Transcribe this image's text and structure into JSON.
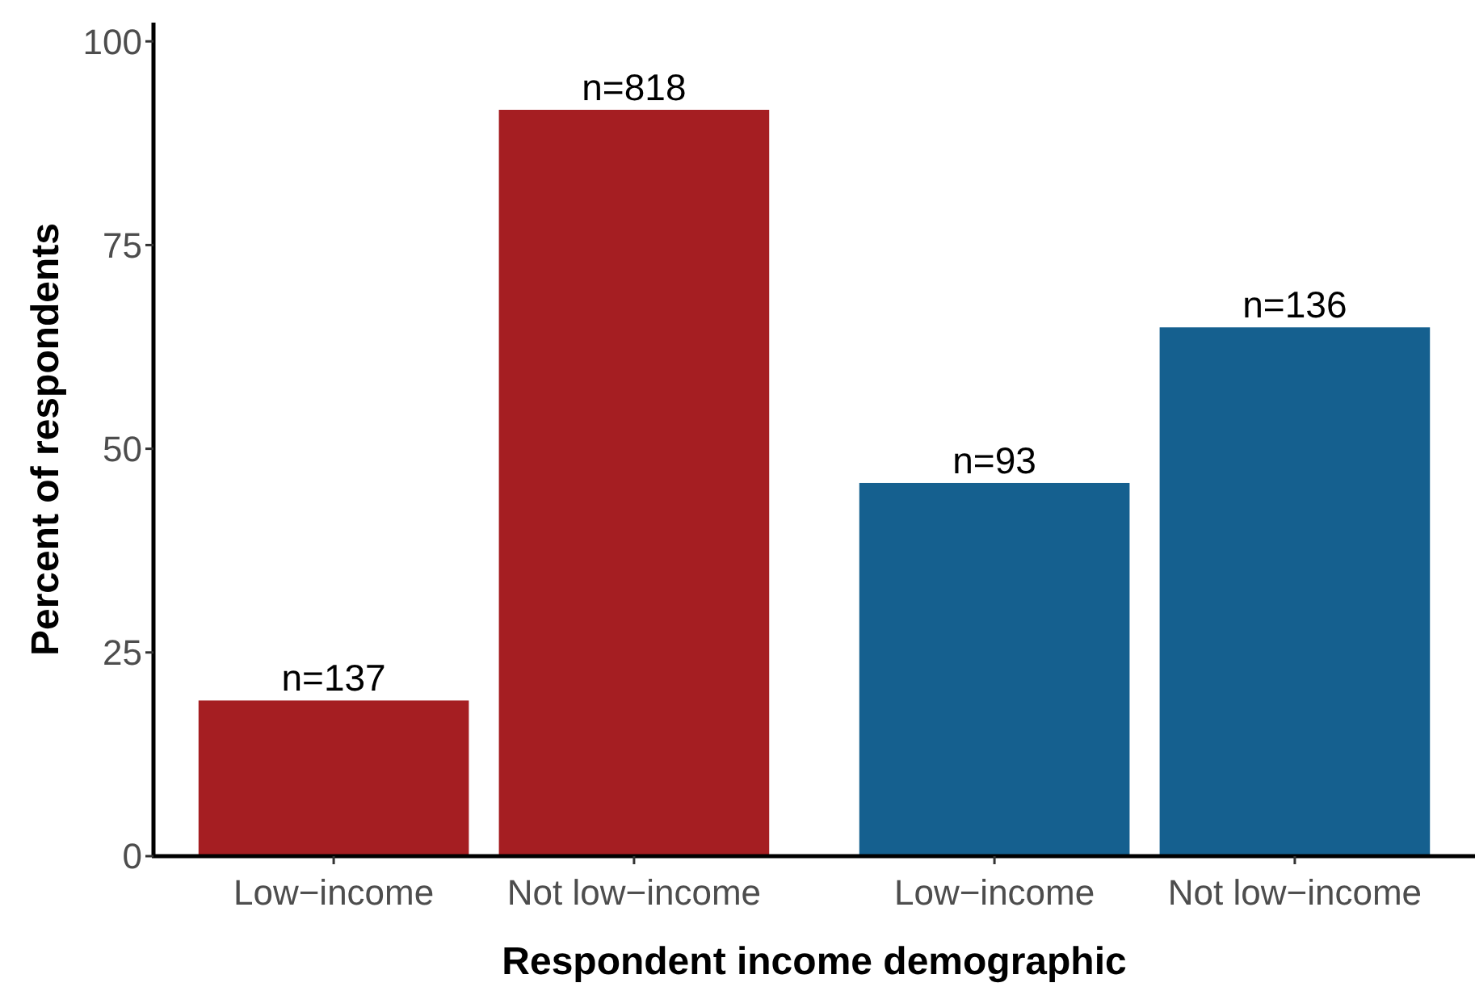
{
  "chart_data": {
    "type": "bar",
    "xlabel": "Respondent income demographic",
    "ylabel": "Percent of respondents",
    "categories": [
      "Low−income",
      "Not low−income",
      "Low−income",
      "Not low−income"
    ],
    "values": [
      19.1,
      91.6,
      45.8,
      64.9
    ],
    "colors": [
      "#a51e22",
      "#a51e22",
      "#15608f",
      "#15608f"
    ],
    "annotations": [
      "n=137",
      "n=818",
      "n=93",
      "n=136"
    ],
    "ylim": [
      0,
      102.3
    ],
    "yticks": [
      0,
      25,
      50,
      75,
      100
    ],
    "grid": false
  }
}
